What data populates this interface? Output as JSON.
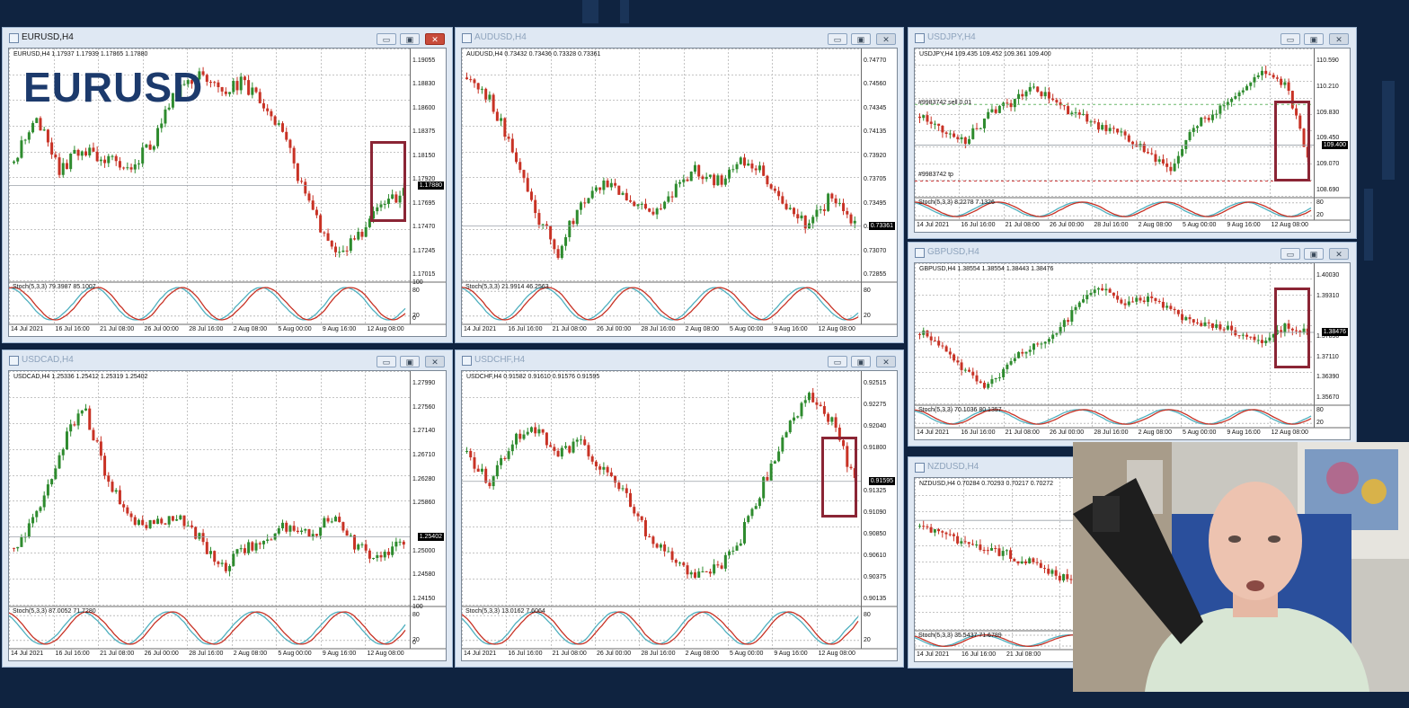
{
  "overlay_title": "EURUSD",
  "colors": {
    "background": "#0f2340",
    "bull": "#2e8b2e",
    "bear": "#c83225",
    "stoch_main": "#4fb0bf",
    "stoch_signal": "#c83225",
    "highlight": "#8b2535"
  },
  "window_buttons": {
    "minimize": "▭",
    "restore": "▣",
    "close": "✕"
  },
  "windows": [
    {
      "title": "EURUSD,H4",
      "active": true,
      "info": "EURUSD,H4  1.17937 1.17939 1.17865 1.17880",
      "prices": [
        "1.19055",
        "1.18830",
        "1.18600",
        "1.18375",
        "1.18150",
        "1.17920",
        "1.17695",
        "1.17470",
        "1.17245",
        "1.17015"
      ],
      "current_price": "1.17880",
      "stoch": "Stoch(5,3,3) 79.3987 85.1007",
      "stoch_levels": [
        "100",
        "80",
        "20",
        "0"
      ],
      "dates": [
        "14 Jul 2021",
        "16 Jul 16:00",
        "21 Jul 08:00",
        "26 Jul 00:00",
        "28 Jul 16:00",
        "2 Aug 08:00",
        "5 Aug 00:00",
        "9 Aug 16:00",
        "12 Aug 08:00"
      ],
      "trend": [
        0.55,
        0.75,
        0.5,
        0.6,
        0.55,
        0.52,
        0.62,
        0.85,
        0.95,
        0.88,
        0.92,
        0.8,
        0.6,
        0.3,
        0.1,
        0.18,
        0.32,
        0.4
      ],
      "hline": 0.43,
      "hl": true
    },
    {
      "title": "AUDUSD,H4",
      "active": false,
      "info": "AUDUSD,H4  0.73432 0.73436 0.73328 0.73361",
      "prices": [
        "0.74770",
        "0.74560",
        "0.74345",
        "0.74135",
        "0.73920",
        "0.73705",
        "0.73495",
        "0.73280",
        "0.73070",
        "0.72855"
      ],
      "current_price": "0.73361",
      "stoch": "Stoch(5,3,3) 21.9914 46.2563",
      "stoch_levels": [
        "80",
        "20"
      ],
      "dates": [
        "14 Jul 2021",
        "16 Jul 16:00",
        "21 Jul 08:00",
        "26 Jul 00:00",
        "28 Jul 16:00",
        "2 Aug 08:00",
        "5 Aug 00:00",
        "9 Aug 16:00",
        "12 Aug 08:00"
      ],
      "trend": [
        0.95,
        0.85,
        0.6,
        0.3,
        0.12,
        0.35,
        0.45,
        0.38,
        0.3,
        0.4,
        0.5,
        0.45,
        0.55,
        0.48,
        0.3,
        0.25,
        0.38,
        0.25
      ],
      "hline": 0.24,
      "hl": false
    },
    {
      "title": "USDJPY,H4",
      "active": false,
      "info": "USDJPY,H4  109.435 109.452 109.361 109.400",
      "prices": [
        "110.590",
        "110.210",
        "109.830",
        "109.450",
        "109.070",
        "108.690"
      ],
      "current_price": "109.400",
      "order1": "#9983742 sell 0.01",
      "order2": "#9983742 tp",
      "stoch": "Stoch(5,3,3) 8.2278 7.1326",
      "stoch_levels": [
        "80",
        "20"
      ],
      "dates": [
        "14 Jul 2021",
        "16 Jul 16:00",
        "21 Jul 08:00",
        "26 Jul 00:00",
        "28 Jul 16:00",
        "2 Aug 08:00",
        "5 Aug 00:00",
        "9 Aug 16:00",
        "12 Aug 08:00"
      ],
      "trend": [
        0.6,
        0.5,
        0.4,
        0.6,
        0.7,
        0.82,
        0.7,
        0.6,
        0.5,
        0.45,
        0.3,
        0.15,
        0.5,
        0.65,
        0.8,
        0.95,
        0.85,
        0.3
      ],
      "hline": 0.37,
      "hl": true
    },
    {
      "title": "GBPUSD,H4",
      "active": false,
      "info": "GBPUSD,H4  1.38554 1.38554 1.38443 1.38476",
      "prices": [
        "1.40030",
        "1.39310",
        "1.38476",
        "1.37850",
        "1.37110",
        "1.36390",
        "1.35670"
      ],
      "current_price": "1.38476",
      "stoch": "Stoch(5,3,3) 70.1036 80.1357",
      "stoch_levels": [
        "80",
        "20"
      ],
      "dates": [
        "14 Jul 2021",
        "16 Jul 16:00",
        "21 Jul 08:00",
        "26 Jul 00:00",
        "28 Jul 16:00",
        "2 Aug 08:00",
        "5 Aug 00:00",
        "9 Aug 16:00",
        "12 Aug 08:00"
      ],
      "trend": [
        0.55,
        0.45,
        0.25,
        0.1,
        0.35,
        0.45,
        0.55,
        0.8,
        0.95,
        0.8,
        0.85,
        0.75,
        0.65,
        0.6,
        0.55,
        0.5,
        0.6,
        0.55
      ],
      "hline": 0.56,
      "hl": true
    },
    {
      "title": "USDCAD,H4",
      "active": false,
      "info": "USDCAD,H4  1.25336 1.25412 1.25319 1.25402",
      "prices": [
        "1.27990",
        "1.27560",
        "1.27140",
        "1.26710",
        "1.26280",
        "1.25860",
        "1.25402",
        "1.25000",
        "1.24580",
        "1.24150"
      ],
      "current_price": "1.25402",
      "stoch": "Stoch(5,3,3) 87.0052 71.7280",
      "stoch_levels": [
        "100",
        "80",
        "20",
        "0"
      ],
      "dates": [
        "14 Jul 2021",
        "16 Jul 16:00",
        "21 Jul 08:00",
        "26 Jul 00:00",
        "28 Jul 16:00",
        "2 Aug 08:00",
        "5 Aug 00:00",
        "9 Aug 16:00",
        "12 Aug 08:00"
      ],
      "trend": [
        0.25,
        0.4,
        0.7,
        0.92,
        0.6,
        0.4,
        0.35,
        0.4,
        0.3,
        0.15,
        0.25,
        0.3,
        0.35,
        0.3,
        0.4,
        0.25,
        0.22,
        0.28
      ],
      "hline": 0.3,
      "hl": false
    },
    {
      "title": "USDCHF,H4",
      "active": false,
      "info": "USDCHF,H4  0.91582 0.91610 0.91576 0.91595",
      "prices": [
        "0.92515",
        "0.92275",
        "0.92040",
        "0.91800",
        "0.91595",
        "0.91325",
        "0.91090",
        "0.90850",
        "0.90610",
        "0.90375",
        "0.90135"
      ],
      "current_price": "0.91595",
      "stoch": "Stoch(5,3,3) 13.0162 7.6064",
      "stoch_levels": [
        "80",
        "20"
      ],
      "dates": [
        "14 Jul 2021",
        "16 Jul 16:00",
        "21 Jul 08:00",
        "26 Jul 00:00",
        "28 Jul 16:00",
        "2 Aug 08:00",
        "5 Aug 00:00",
        "9 Aug 16:00",
        "12 Aug 08:00"
      ],
      "trend": [
        0.7,
        0.55,
        0.75,
        0.8,
        0.7,
        0.75,
        0.6,
        0.5,
        0.3,
        0.2,
        0.12,
        0.15,
        0.3,
        0.55,
        0.8,
        0.95,
        0.85,
        0.55
      ],
      "hline": 0.56,
      "hl": true
    },
    {
      "title": "NZDUSD,H4",
      "active": false,
      "info": "NZDUSD,H4  0.70284 0.70293 0.70217 0.70272",
      "stoch": "Stoch(5,3,3) 35.5437 71.6789",
      "dates": [
        "14 Jul 2021",
        "16 Jul 16:00",
        "21 Jul 08:00"
      ],
      "trend": [
        0.75,
        0.6,
        0.45,
        0.2,
        0.5,
        0.6,
        0.7,
        0.75
      ],
      "hline": 0.8,
      "hl": false
    }
  ]
}
